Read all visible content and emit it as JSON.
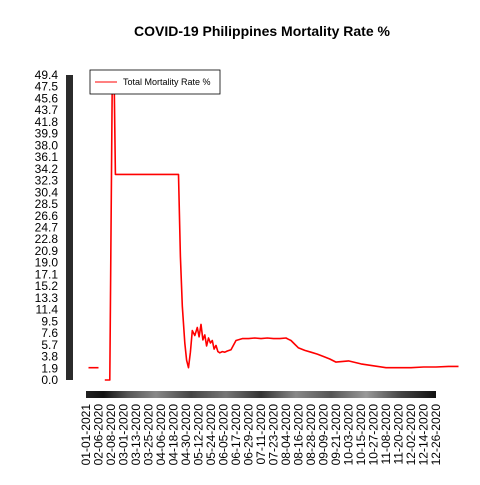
{
  "chart_data": {
    "type": "line",
    "title": "COVID-19 Philippines Mortality Rate %",
    "xlabel": "",
    "ylabel": "",
    "legend": {
      "position": "top-left",
      "entries": [
        "Total Mortality Rate %"
      ]
    },
    "y_ticks": [
      "0.0",
      "1.9",
      "3.8",
      "5.7",
      "7.6",
      "9.5",
      "11.4",
      "13.3",
      "15.2",
      "17.1",
      "19.0",
      "20.9",
      "22.8",
      "24.7",
      "26.6",
      "28.5",
      "30.4",
      "32.3",
      "34.2",
      "36.1",
      "38.0",
      "39.9",
      "41.8",
      "43.7",
      "45.6",
      "47.5",
      "49.4"
    ],
    "x_ticks": [
      "01-01-2021",
      "02-06-2020",
      "02-08-2020",
      "03-01-2020",
      "03-13-2020",
      "03-25-2020",
      "04-06-2020",
      "04-18-2020",
      "04-30-2020",
      "05-12-2020",
      "05-24-2020",
      "06-05-2020",
      "06-17-2020",
      "06-29-2020",
      "07-11-2020",
      "07-23-2020",
      "08-04-2020",
      "08-16-2020",
      "08-28-2020",
      "09-09-2020",
      "09-21-2020",
      "10-03-2020",
      "10-15-2020",
      "10-27-2020",
      "11-08-2020",
      "11-20-2020",
      "12-02-2020",
      "12-14-2020",
      "12-26-2020"
    ],
    "ylim": [
      0,
      49.4
    ],
    "series": [
      {
        "name": "Total Mortality Rate %",
        "color": "#ff0000",
        "segments": [
          {
            "x": [
              0.2,
              1.0
            ],
            "y": [
              2.0,
              2.0
            ]
          },
          {
            "x": [
              1.5,
              1.9,
              2.1,
              2.25,
              2.35,
              2.5,
              2.6,
              3.0,
              3.5,
              4.0,
              4.5,
              5.0,
              5.5,
              6.0,
              6.5,
              7.0,
              7.4,
              7.55,
              7.7,
              7.9,
              8.05,
              8.2,
              8.35,
              8.5,
              8.7,
              8.9,
              9.05,
              9.2,
              9.35,
              9.5,
              9.65,
              9.8,
              9.95,
              10.1,
              10.25,
              10.4,
              10.55,
              10.7,
              10.9,
              11.1,
              11.3,
              11.6,
              12.0,
              12.5,
              13.0,
              13.5,
              14.0,
              14.5,
              15.0,
              15.5,
              16.0,
              16.2,
              16.4,
              16.6,
              17.0,
              17.5,
              18.0,
              18.5,
              19.0,
              19.5,
              20.0,
              21.0,
              22.0,
              23.0,
              24.0,
              25.0,
              26.0,
              27.0,
              28.0,
              29.0,
              29.8
            ],
            "y": [
              0.0,
              0.0,
              49.4,
              49.4,
              33.3,
              33.3,
              33.3,
              33.3,
              33.3,
              33.3,
              33.3,
              33.3,
              33.3,
              33.3,
              33.3,
              33.3,
              33.3,
              20.0,
              12.0,
              6.0,
              3.2,
              2.0,
              4.5,
              8.0,
              7.2,
              8.5,
              7.0,
              9.0,
              6.5,
              7.3,
              5.5,
              6.8,
              6.0,
              6.4,
              5.0,
              5.6,
              4.6,
              4.4,
              4.6,
              4.5,
              4.7,
              4.9,
              6.4,
              6.7,
              6.7,
              6.8,
              6.7,
              6.8,
              6.7,
              6.7,
              6.8,
              6.6,
              6.4,
              6.0,
              5.2,
              4.8,
              4.5,
              4.2,
              3.8,
              3.4,
              2.9,
              3.1,
              2.6,
              2.3,
              2.0,
              2.0,
              2.0,
              2.1,
              2.1,
              2.2,
              2.2
            ]
          }
        ]
      }
    ]
  }
}
